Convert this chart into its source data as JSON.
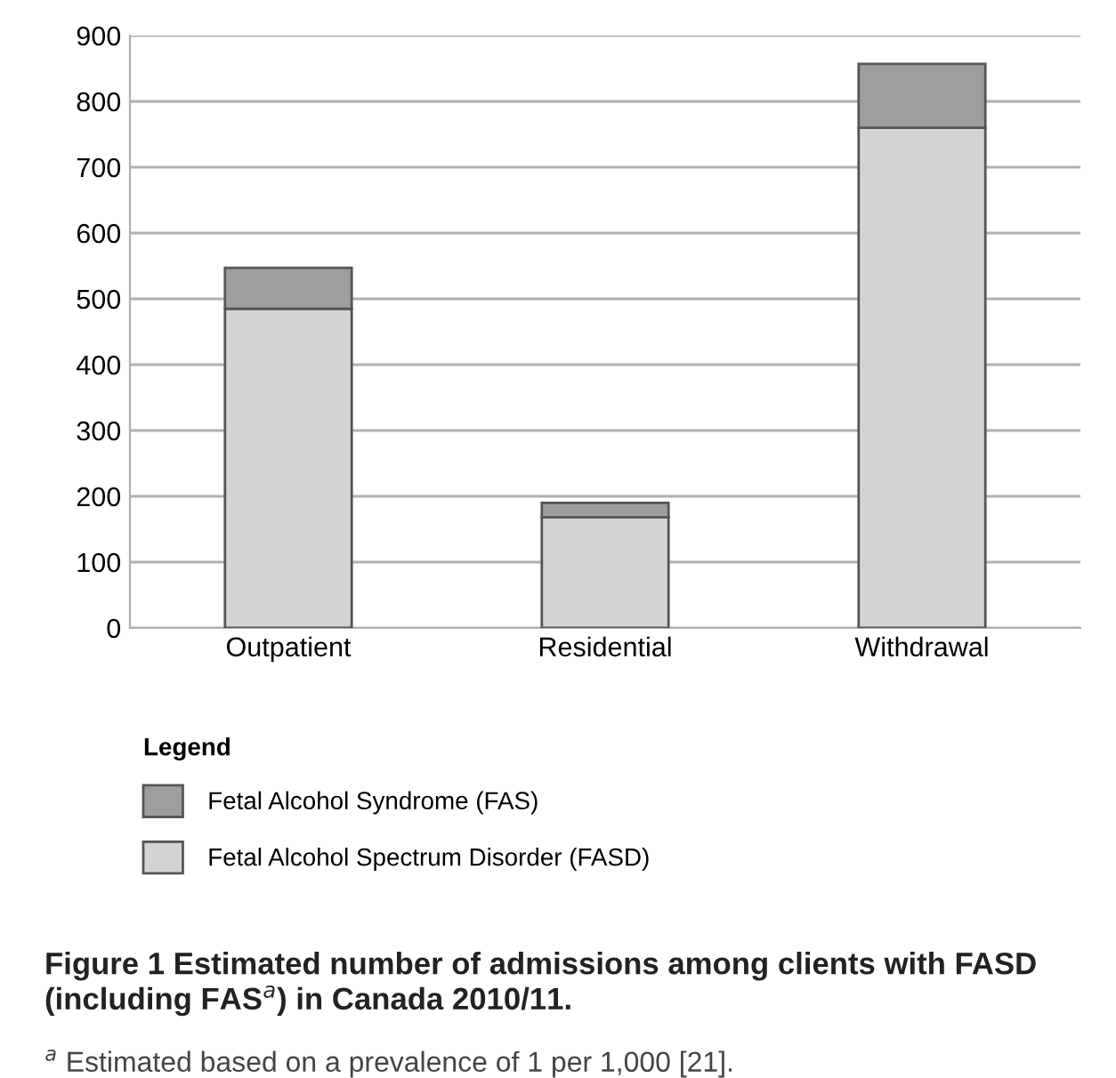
{
  "chart_data": {
    "type": "bar",
    "stacked": true,
    "categories": [
      "Outpatient",
      "Residential",
      "Withdrawal"
    ],
    "series": [
      {
        "name": "Fetal Alcohol Spectrum Disorder (FASD)",
        "color": "#d3d3d3",
        "values": [
          485,
          168,
          760
        ]
      },
      {
        "name": "Fetal Alcohol Syndrome (FAS)",
        "color": "#9e9e9e",
        "values": [
          62,
          22,
          97
        ]
      }
    ],
    "ylim": [
      0,
      900
    ],
    "yticks": [
      0,
      100,
      200,
      300,
      400,
      500,
      600,
      700,
      800,
      900
    ],
    "grid": "y",
    "legend": "bottom",
    "legend_title": "Legend",
    "annotations": [
      "Figure 1 Estimated number of admissions among clients with FASD (including FAS$^{a}$) in Canada 2010/11.",
      "$^{a}$ Estimated based on a prevalence of 1 per 1,000 [21]."
    ]
  }
}
